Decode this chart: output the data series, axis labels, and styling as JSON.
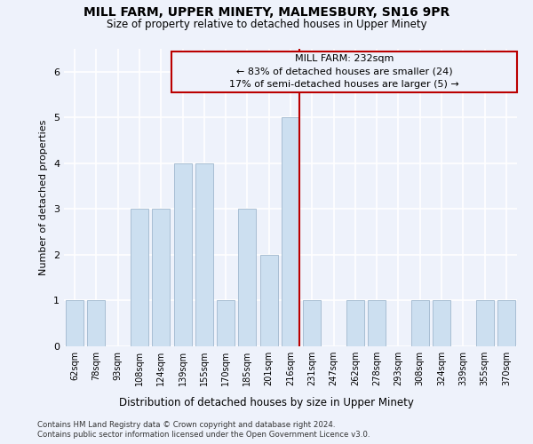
{
  "title": "MILL FARM, UPPER MINETY, MALMESBURY, SN16 9PR",
  "subtitle": "Size of property relative to detached houses in Upper Minety",
  "xlabel": "Distribution of detached houses by size in Upper Minety",
  "ylabel": "Number of detached properties",
  "categories": [
    "62sqm",
    "78sqm",
    "93sqm",
    "108sqm",
    "124sqm",
    "139sqm",
    "155sqm",
    "170sqm",
    "185sqm",
    "201sqm",
    "216sqm",
    "231sqm",
    "247sqm",
    "262sqm",
    "278sqm",
    "293sqm",
    "308sqm",
    "324sqm",
    "339sqm",
    "355sqm",
    "370sqm"
  ],
  "values": [
    1,
    1,
    0,
    3,
    3,
    4,
    4,
    1,
    3,
    2,
    5,
    1,
    0,
    1,
    1,
    0,
    1,
    1,
    0,
    1,
    1
  ],
  "bar_color": "#ccdff0",
  "bar_edge_color": "#a0b8ce",
  "highlight_index": 10,
  "highlight_line_color": "#bb0000",
  "highlight_line_label": "MILL FARM: 232sqm",
  "annotation_smaller": "← 83% of detached houses are smaller (24)",
  "annotation_larger": "17% of semi-detached houses are larger (5) →",
  "ylim": [
    0,
    6.0
  ],
  "yticks": [
    0,
    1,
    2,
    3,
    4,
    5,
    6
  ],
  "background_color": "#eef2fb",
  "grid_color": "#ffffff",
  "footer1": "Contains HM Land Registry data © Crown copyright and database right 2024.",
  "footer2": "Contains public sector information licensed under the Open Government Licence v3.0."
}
